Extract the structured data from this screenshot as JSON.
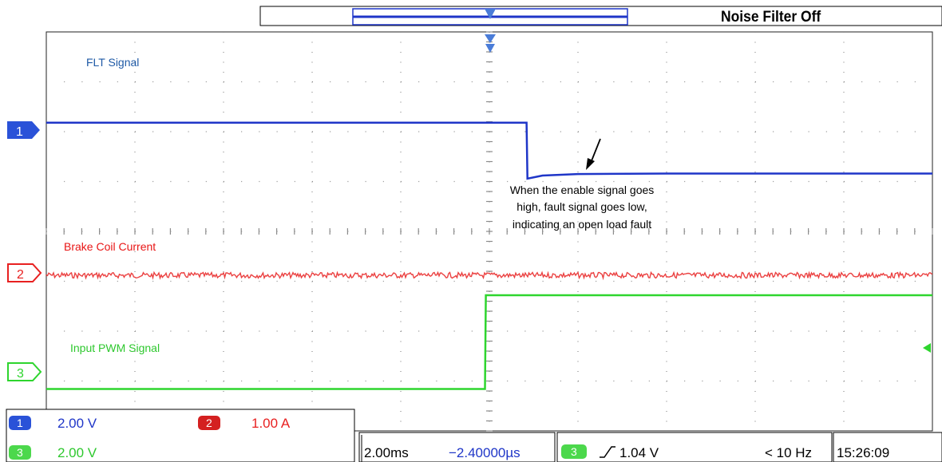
{
  "colors": {
    "ch1": "#1f36c8",
    "ch2": "#e82020",
    "ch3": "#2ed52e",
    "grid": "#8c8c8c",
    "label_ch1": "#1f5aa6",
    "label_ch2": "#e81515",
    "label_ch3": "#2ec82e"
  },
  "header": {
    "noise_filter": "Noise Filter Off"
  },
  "markers": {
    "ch1": "1",
    "ch2": "2",
    "ch3": "3"
  },
  "annotation": {
    "lines": [
      "When the enable signal goes",
      "high, fault signal goes low,",
      "indicating an open load fault"
    ]
  },
  "bottom_panel": {
    "ch1_scale": "2.00 V",
    "ch2_scale": "1.00 A",
    "ch3_scale": "2.00 V",
    "timebase": "2.00ms",
    "delay": "−2.40000µs",
    "trigger_channel": "3",
    "trigger_level": "1.04 V",
    "frequency": "< 10 Hz",
    "time": "15:26:09"
  },
  "chart_data": {
    "type": "line",
    "x_divisions": 10,
    "y_divisions": 8,
    "trigger_position_div": 5,
    "series": [
      {
        "name": "FLT Signal",
        "channel": "1",
        "points": [
          [
            0,
            6.18
          ],
          [
            5.42,
            6.18
          ],
          [
            5.43,
            5.06
          ],
          [
            5.6,
            5.12
          ],
          [
            6.0,
            5.15
          ],
          [
            7.0,
            5.16
          ],
          [
            10,
            5.16
          ]
        ]
      },
      {
        "name": "Brake Coil Current",
        "channel": "2",
        "points": [
          [
            0,
            3.12
          ],
          [
            10,
            3.12
          ]
        ],
        "noisy": true
      },
      {
        "name": "Input PWM Signal",
        "channel": "3",
        "points": [
          [
            0,
            0.84
          ],
          [
            4.95,
            0.84
          ],
          [
            4.96,
            2.72
          ],
          [
            10,
            2.72
          ]
        ]
      }
    ]
  }
}
